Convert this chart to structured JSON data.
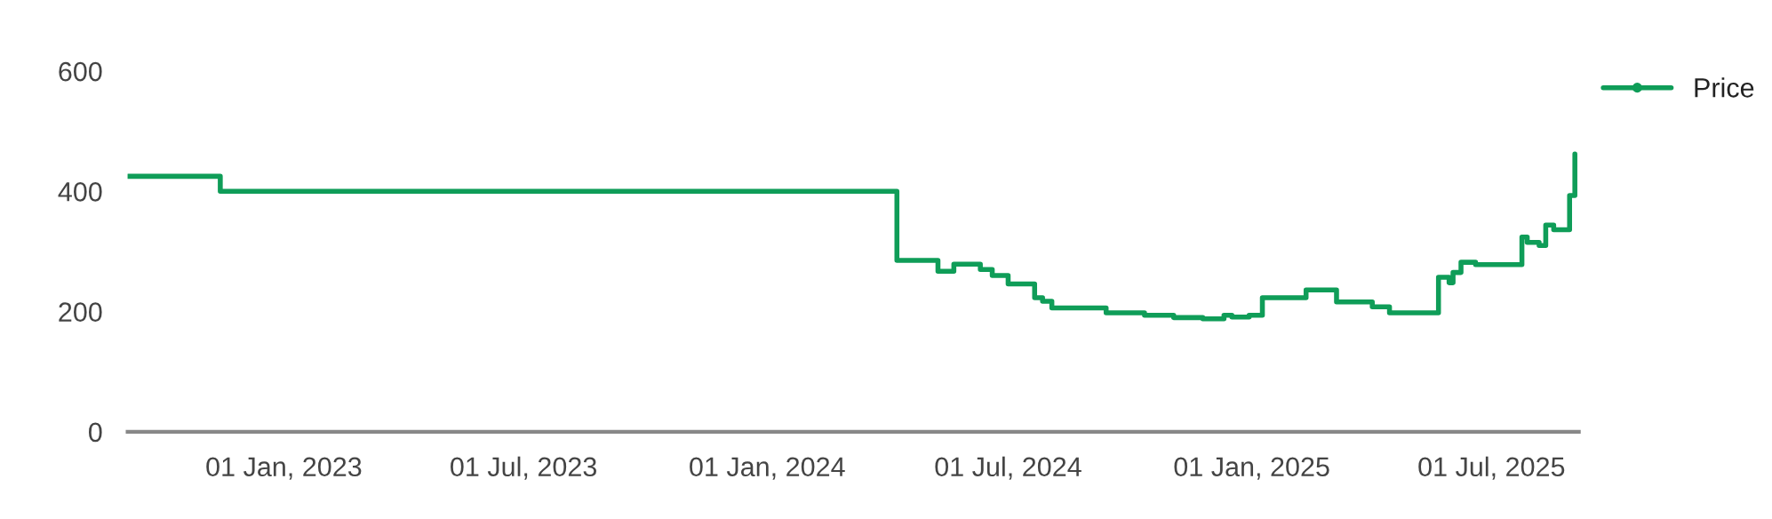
{
  "chart_data": {
    "type": "step",
    "x": [
      "2022-09-05",
      "2022-11-14",
      "2024-04-08",
      "2024-05-09",
      "2024-05-21",
      "2024-06-10",
      "2024-06-19",
      "2024-07-01",
      "2024-07-21",
      "2024-07-27",
      "2024-08-03",
      "2024-09-13",
      "2024-10-12",
      "2024-11-03",
      "2024-11-25",
      "2024-12-11",
      "2024-12-17",
      "2024-12-30",
      "2025-01-09",
      "2025-02-11",
      "2025-03-06",
      "2025-04-02",
      "2025-04-15",
      "2025-05-22",
      "2025-05-30",
      "2025-06-02",
      "2025-06-08",
      "2025-06-19",
      "2025-07-24",
      "2025-07-28",
      "2025-08-06",
      "2025-08-11",
      "2025-08-17",
      "2025-08-29",
      "2025-09-02"
    ],
    "series": [
      {
        "name": "Price",
        "color": "#0f9d58",
        "values": [
          425,
          400,
          285,
          267,
          279,
          270,
          260,
          246,
          223,
          217,
          206,
          198,
          194,
          190,
          188,
          194,
          191,
          194,
          223,
          236,
          216,
          208,
          198,
          257,
          248,
          265,
          282,
          278,
          324,
          315,
          310,
          344,
          336,
          393,
          462
        ]
      }
    ],
    "xlim": [
      "2022-09-05",
      "2025-09-05"
    ],
    "xticks": [
      {
        "value": "2023-01-01",
        "label": "01 Jan, 2023"
      },
      {
        "value": "2023-07-01",
        "label": "01 Jul, 2023"
      },
      {
        "value": "2024-01-01",
        "label": "01 Jan, 2024"
      },
      {
        "value": "2024-07-01",
        "label": "01 Jul, 2024"
      },
      {
        "value": "2025-01-01",
        "label": "01 Jan, 2025"
      },
      {
        "value": "2025-07-01",
        "label": "01 Jul, 2025"
      }
    ],
    "ylim": [
      0,
      600
    ],
    "yticks": [
      0,
      200,
      400,
      600
    ],
    "grid": false,
    "legend": "top right"
  }
}
